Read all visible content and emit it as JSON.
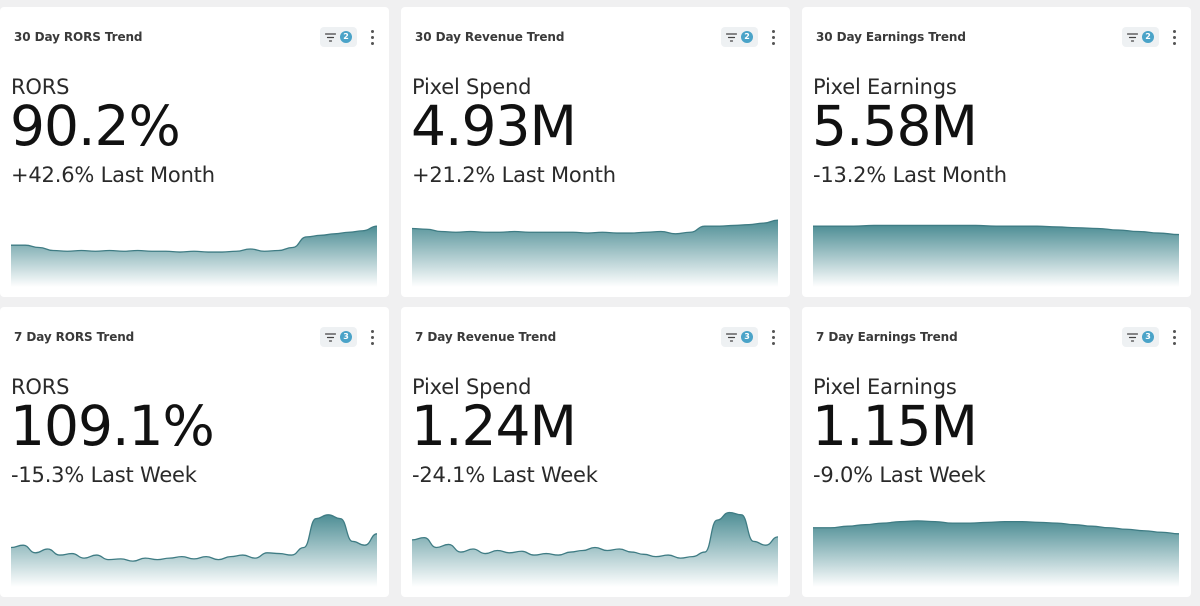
{
  "colors": {
    "accent": "#4aa3c8",
    "area_top": "#4e8e95",
    "area_bottom": "#ffffff",
    "line": "#3f7c84",
    "card_bg": "#ffffff",
    "page_bg": "#f0f0f1"
  },
  "cards": [
    {
      "title": "30 Day RORS Trend",
      "filter_count": "2",
      "metric_label": "RORS",
      "metric_value": "90.2%",
      "delta": "+42.6% Last Month",
      "filter_icon": "filter-icon",
      "menu_icon": "more-vertical-icon",
      "trend": [
        0.55,
        0.55,
        0.52,
        0.48,
        0.47,
        0.48,
        0.47,
        0.48,
        0.47,
        0.48,
        0.47,
        0.47,
        0.46,
        0.47,
        0.46,
        0.46,
        0.47,
        0.5,
        0.47,
        0.48,
        0.52,
        0.66,
        0.68,
        0.7,
        0.72,
        0.74,
        0.8
      ]
    },
    {
      "title": "30 Day Revenue Trend",
      "filter_count": "2",
      "metric_label": "Pixel Spend",
      "metric_value": "4.93M",
      "delta": "+21.2% Last Month",
      "filter_icon": "filter-icon",
      "menu_icon": "more-vertical-icon",
      "trend": [
        0.77,
        0.76,
        0.73,
        0.72,
        0.73,
        0.72,
        0.72,
        0.73,
        0.72,
        0.72,
        0.72,
        0.72,
        0.71,
        0.72,
        0.71,
        0.71,
        0.72,
        0.73,
        0.7,
        0.72,
        0.8,
        0.8,
        0.81,
        0.82,
        0.84,
        0.88
      ]
    },
    {
      "title": "30 Day Earnings Trend",
      "filter_count": "2",
      "metric_label": "Pixel Earnings",
      "metric_value": "5.58M",
      "delta": "-13.2% Last Month",
      "filter_icon": "filter-icon",
      "menu_icon": "more-vertical-icon",
      "trend": [
        0.8,
        0.8,
        0.8,
        0.81,
        0.81,
        0.81,
        0.81,
        0.81,
        0.81,
        0.8,
        0.8,
        0.8,
        0.79,
        0.78,
        0.77,
        0.75,
        0.73,
        0.71,
        0.69
      ]
    },
    {
      "title": "7 Day RORS Trend",
      "filter_count": "3",
      "metric_label": "RORS",
      "metric_value": "109.1%",
      "delta": "-15.3% Last Week",
      "filter_icon": "filter-icon",
      "menu_icon": "more-vertical-icon",
      "trend": [
        0.52,
        0.55,
        0.45,
        0.5,
        0.42,
        0.44,
        0.38,
        0.42,
        0.36,
        0.37,
        0.34,
        0.38,
        0.36,
        0.38,
        0.4,
        0.37,
        0.4,
        0.36,
        0.4,
        0.42,
        0.38,
        0.45,
        0.44,
        0.42,
        0.52,
        0.9,
        0.95,
        0.9,
        0.6,
        0.55,
        0.7
      ]
    },
    {
      "title": "7 Day Revenue Trend",
      "filter_count": "3",
      "metric_label": "Pixel Spend",
      "metric_value": "1.24M",
      "delta": "-24.1% Last Week",
      "filter_icon": "filter-icon",
      "menu_icon": "more-vertical-icon",
      "trend": [
        0.62,
        0.65,
        0.52,
        0.56,
        0.46,
        0.5,
        0.44,
        0.48,
        0.45,
        0.47,
        0.42,
        0.44,
        0.42,
        0.46,
        0.48,
        0.52,
        0.48,
        0.5,
        0.46,
        0.43,
        0.4,
        0.42,
        0.38,
        0.4,
        0.46,
        0.88,
        0.98,
        0.95,
        0.6,
        0.55,
        0.66
      ]
    },
    {
      "title": "7 Day Earnings Trend",
      "filter_count": "3",
      "metric_label": "Pixel Earnings",
      "metric_value": "1.15M",
      "delta": "-9.0% Last Week",
      "filter_icon": "filter-icon",
      "menu_icon": "more-vertical-icon",
      "trend": [
        0.78,
        0.78,
        0.8,
        0.82,
        0.84,
        0.86,
        0.87,
        0.86,
        0.84,
        0.84,
        0.85,
        0.86,
        0.86,
        0.85,
        0.84,
        0.82,
        0.8,
        0.78,
        0.76,
        0.74,
        0.72,
        0.7
      ]
    }
  ]
}
